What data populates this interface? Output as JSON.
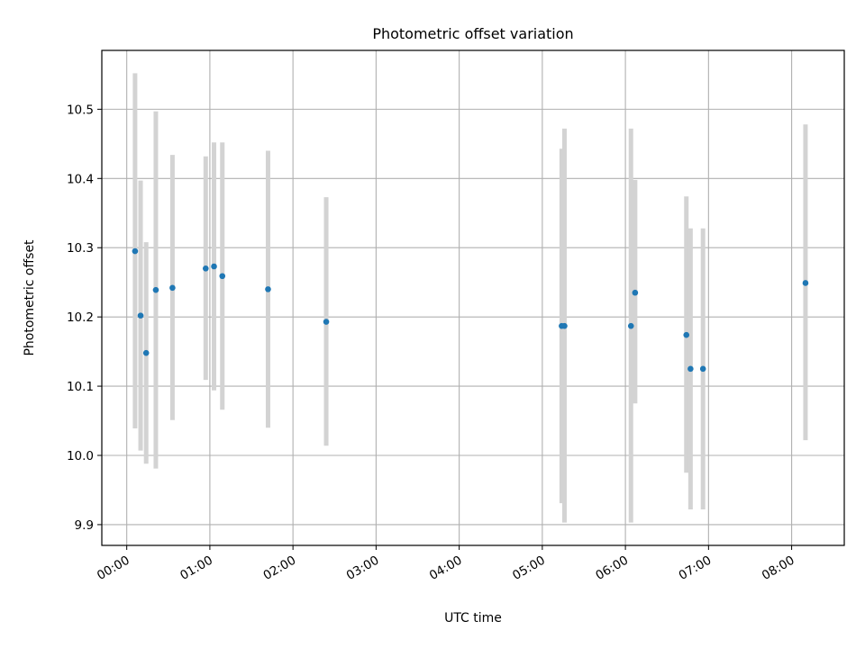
{
  "chart_data": {
    "type": "scatter",
    "title": "Photometric offset variation",
    "xlabel": "UTC time",
    "ylabel": "Photometric offset",
    "xlim": [
      "-00:18",
      "08:38"
    ],
    "ylim": [
      9.87,
      10.585
    ],
    "x_ticks": [
      "00:00",
      "01:00",
      "02:00",
      "03:00",
      "04:00",
      "05:00",
      "06:00",
      "07:00",
      "08:00"
    ],
    "y_ticks": [
      "9.9",
      "10.0",
      "10.1",
      "10.2",
      "10.3",
      "10.4",
      "10.5"
    ],
    "grid": true,
    "error_bars": true,
    "points": [
      {
        "x": "00:06",
        "y": 10.295,
        "y_low": 10.039,
        "y_high": 10.552
      },
      {
        "x": "00:10",
        "y": 10.202,
        "y_low": 10.007,
        "y_high": 10.397
      },
      {
        "x": "00:14",
        "y": 10.148,
        "y_low": 9.988,
        "y_high": 10.308
      },
      {
        "x": "00:21",
        "y": 10.239,
        "y_low": 9.981,
        "y_high": 10.497
      },
      {
        "x": "00:33",
        "y": 10.242,
        "y_low": 10.051,
        "y_high": 10.434
      },
      {
        "x": "00:57",
        "y": 10.27,
        "y_low": 10.109,
        "y_high": 10.432
      },
      {
        "x": "01:03",
        "y": 10.273,
        "y_low": 10.094,
        "y_high": 10.452
      },
      {
        "x": "01:09",
        "y": 10.259,
        "y_low": 10.066,
        "y_high": 10.452
      },
      {
        "x": "01:42",
        "y": 10.24,
        "y_low": 10.04,
        "y_high": 10.44
      },
      {
        "x": "02:24",
        "y": 10.193,
        "y_low": 10.014,
        "y_high": 10.373
      },
      {
        "x": "05:14",
        "y": 10.187,
        "y_low": 9.931,
        "y_high": 10.443
      },
      {
        "x": "05:16",
        "y": 10.187,
        "y_low": 9.903,
        "y_high": 10.472
      },
      {
        "x": "06:04",
        "y": 10.187,
        "y_low": 9.903,
        "y_high": 10.472
      },
      {
        "x": "06:07",
        "y": 10.235,
        "y_low": 10.075,
        "y_high": 10.398
      },
      {
        "x": "06:44",
        "y": 10.174,
        "y_low": 9.975,
        "y_high": 10.374
      },
      {
        "x": "06:47",
        "y": 10.125,
        "y_low": 9.922,
        "y_high": 10.328
      },
      {
        "x": "06:56",
        "y": 10.125,
        "y_low": 9.922,
        "y_high": 10.328
      },
      {
        "x": "08:10",
        "y": 10.249,
        "y_low": 10.022,
        "y_high": 10.478
      }
    ],
    "colors": {
      "marker": "#1f77b4",
      "error_bar": "#d3d3d3",
      "grid": "#b0b0b0",
      "frame": "#000000"
    }
  }
}
